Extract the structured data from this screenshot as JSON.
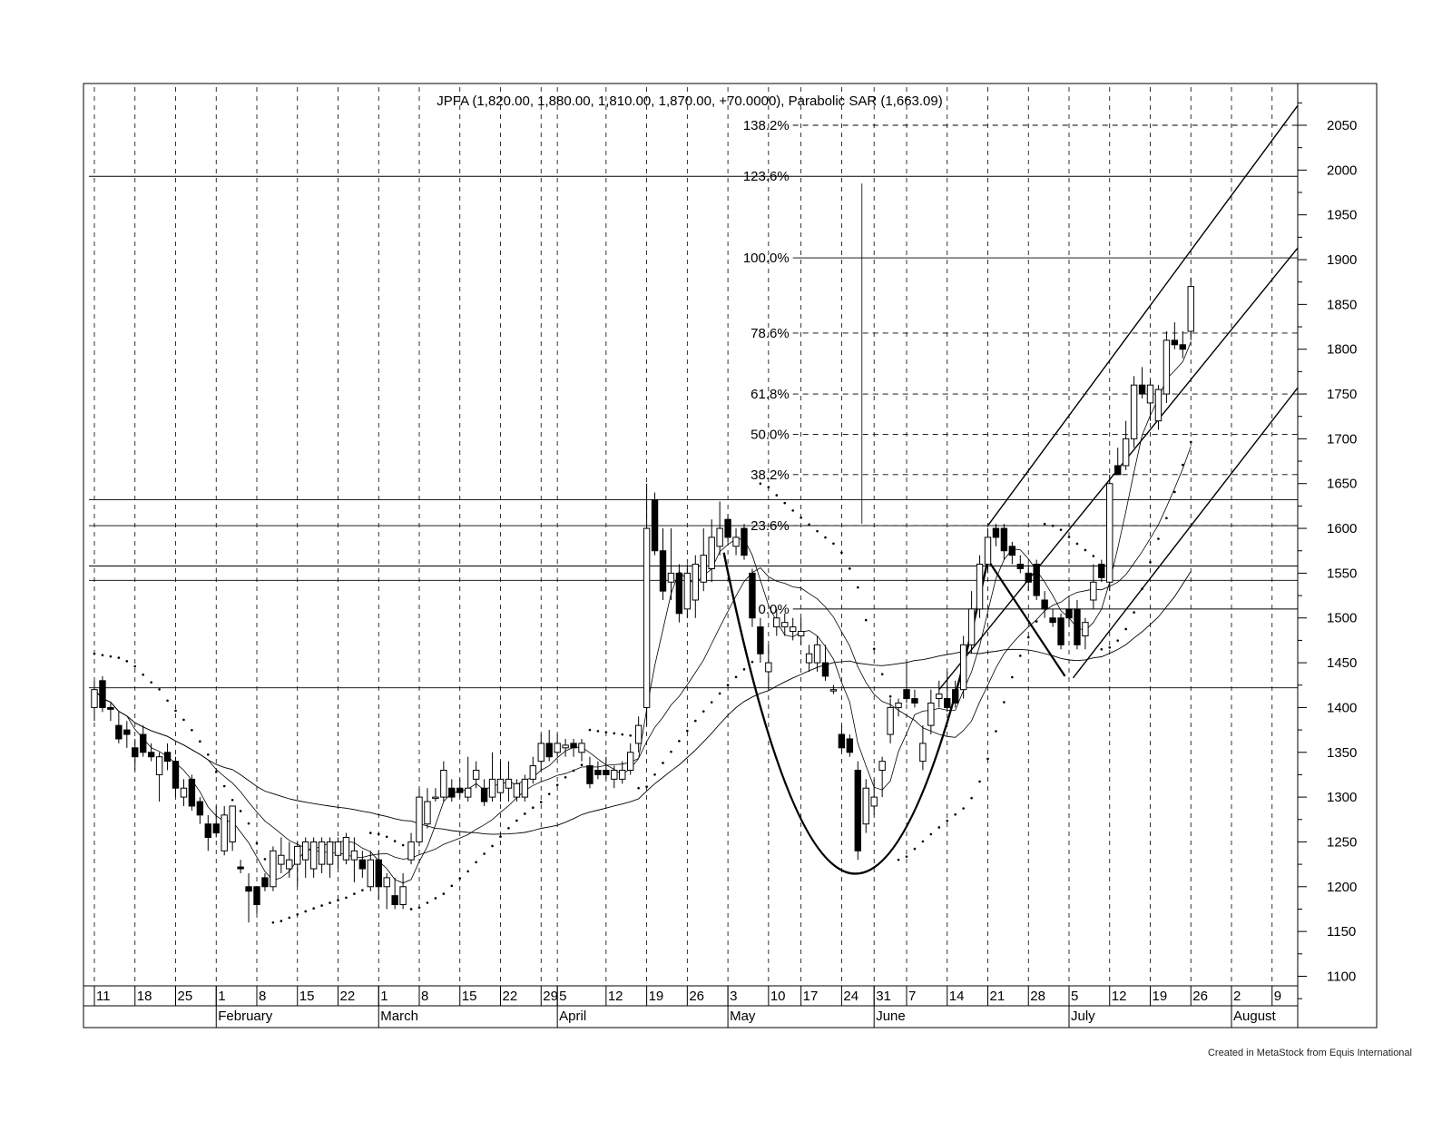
{
  "chart_data": {
    "type": "candlestick",
    "title": "JPFA (1,820.00, 1,880.00, 1,810.00, 1,870.00, +70.0000), Parabolic SAR (1,663.09)",
    "ylim": [
      1070,
      2080
    ],
    "y_ticks": [
      1100,
      1150,
      1200,
      1250,
      1300,
      1350,
      1400,
      1450,
      1500,
      1550,
      1600,
      1650,
      1700,
      1750,
      1800,
      1850,
      1900,
      1950,
      2000,
      2050
    ],
    "x_day_ticks": [
      {
        "i": 0,
        "label": "11"
      },
      {
        "i": 5,
        "label": "18"
      },
      {
        "i": 10,
        "label": "25"
      },
      {
        "i": 15,
        "label": "1"
      },
      {
        "i": 20,
        "label": "8"
      },
      {
        "i": 25,
        "label": "15"
      },
      {
        "i": 30,
        "label": "22"
      },
      {
        "i": 35,
        "label": "1"
      },
      {
        "i": 40,
        "label": "8"
      },
      {
        "i": 45,
        "label": "15"
      },
      {
        "i": 50,
        "label": "22"
      },
      {
        "i": 55,
        "label": "29"
      },
      {
        "i": 57,
        "label": "5"
      },
      {
        "i": 63,
        "label": "12"
      },
      {
        "i": 68,
        "label": "19"
      },
      {
        "i": 73,
        "label": "26"
      },
      {
        "i": 78,
        "label": "3"
      },
      {
        "i": 83,
        "label": "10"
      },
      {
        "i": 87,
        "label": "17"
      },
      {
        "i": 92,
        "label": "24"
      },
      {
        "i": 96,
        "label": "31"
      },
      {
        "i": 100,
        "label": "7"
      },
      {
        "i": 105,
        "label": "14"
      },
      {
        "i": 110,
        "label": "21"
      },
      {
        "i": 115,
        "label": "28"
      },
      {
        "i": 120,
        "label": "5"
      },
      {
        "i": 125,
        "label": "12"
      },
      {
        "i": 130,
        "label": "19"
      },
      {
        "i": 135,
        "label": "26"
      },
      {
        "i": 140,
        "label": "2"
      },
      {
        "i": 145,
        "label": "9"
      }
    ],
    "x_month_labels": [
      {
        "i": 15,
        "label": "February"
      },
      {
        "i": 35,
        "label": "March"
      },
      {
        "i": 57,
        "label": "April"
      },
      {
        "i": 78,
        "label": "May"
      },
      {
        "i": 96,
        "label": "June"
      },
      {
        "i": 120,
        "label": "July"
      },
      {
        "i": 140,
        "label": "August"
      }
    ],
    "fibonacci_levels": [
      {
        "label": "0.0%",
        "value": 1510
      },
      {
        "label": "23.6%",
        "value": 1603
      },
      {
        "label": "38.2%",
        "value": 1660
      },
      {
        "label": "50.0%",
        "value": 1705
      },
      {
        "label": "61.8%",
        "value": 1750
      },
      {
        "label": "78.6%",
        "value": 1818
      },
      {
        "label": "100.0%",
        "value": 1902
      },
      {
        "label": "123.6%",
        "value": 1993
      },
      {
        "label": "138.2%",
        "value": 2050
      }
    ],
    "horizontal_lines": [
      1422,
      1542,
      1558,
      1603,
      1632
    ],
    "candles": [
      {
        "i": 0,
        "o": 1400,
        "h": 1430,
        "l": 1385,
        "c": 1420
      },
      {
        "i": 1,
        "o": 1430,
        "h": 1435,
        "l": 1395,
        "c": 1400
      },
      {
        "i": 2,
        "o": 1400,
        "h": 1405,
        "l": 1385,
        "c": 1398
      },
      {
        "i": 3,
        "o": 1380,
        "h": 1395,
        "l": 1360,
        "c": 1365
      },
      {
        "i": 4,
        "o": 1375,
        "h": 1385,
        "l": 1355,
        "c": 1370
      },
      {
        "i": 5,
        "o": 1355,
        "h": 1365,
        "l": 1330,
        "c": 1345
      },
      {
        "i": 6,
        "o": 1370,
        "h": 1380,
        "l": 1345,
        "c": 1350
      },
      {
        "i": 7,
        "o": 1350,
        "h": 1360,
        "l": 1340,
        "c": 1345
      },
      {
        "i": 8,
        "o": 1325,
        "h": 1350,
        "l": 1295,
        "c": 1345
      },
      {
        "i": 9,
        "o": 1350,
        "h": 1360,
        "l": 1330,
        "c": 1340
      },
      {
        "i": 10,
        "o": 1340,
        "h": 1345,
        "l": 1300,
        "c": 1310
      },
      {
        "i": 11,
        "o": 1300,
        "h": 1320,
        "l": 1290,
        "c": 1310
      },
      {
        "i": 12,
        "o": 1320,
        "h": 1325,
        "l": 1285,
        "c": 1290
      },
      {
        "i": 13,
        "o": 1295,
        "h": 1300,
        "l": 1270,
        "c": 1280
      },
      {
        "i": 14,
        "o": 1270,
        "h": 1280,
        "l": 1240,
        "c": 1255
      },
      {
        "i": 15,
        "o": 1270,
        "h": 1290,
        "l": 1255,
        "c": 1260
      },
      {
        "i": 16,
        "o": 1240,
        "h": 1290,
        "l": 1235,
        "c": 1280
      },
      {
        "i": 17,
        "o": 1250,
        "h": 1290,
        "l": 1240,
        "c": 1290
      },
      {
        "i": 18,
        "o": 1222,
        "h": 1230,
        "l": 1215,
        "c": 1220
      },
      {
        "i": 19,
        "o": 1200,
        "h": 1215,
        "l": 1160,
        "c": 1195
      },
      {
        "i": 20,
        "o": 1200,
        "h": 1200,
        "l": 1170,
        "c": 1180
      },
      {
        "i": 21,
        "o": 1210,
        "h": 1215,
        "l": 1195,
        "c": 1200
      },
      {
        "i": 22,
        "o": 1200,
        "h": 1245,
        "l": 1195,
        "c": 1240
      },
      {
        "i": 23,
        "o": 1225,
        "h": 1255,
        "l": 1215,
        "c": 1235
      },
      {
        "i": 24,
        "o": 1220,
        "h": 1250,
        "l": 1210,
        "c": 1230
      },
      {
        "i": 25,
        "o": 1225,
        "h": 1250,
        "l": 1200,
        "c": 1245
      },
      {
        "i": 26,
        "o": 1230,
        "h": 1255,
        "l": 1210,
        "c": 1250
      },
      {
        "i": 27,
        "o": 1220,
        "h": 1255,
        "l": 1210,
        "c": 1250
      },
      {
        "i": 28,
        "o": 1225,
        "h": 1255,
        "l": 1215,
        "c": 1250
      },
      {
        "i": 29,
        "o": 1225,
        "h": 1255,
        "l": 1210,
        "c": 1250
      },
      {
        "i": 30,
        "o": 1235,
        "h": 1255,
        "l": 1220,
        "c": 1250
      },
      {
        "i": 31,
        "o": 1230,
        "h": 1260,
        "l": 1225,
        "c": 1255
      },
      {
        "i": 32,
        "o": 1230,
        "h": 1255,
        "l": 1205,
        "c": 1240
      },
      {
        "i": 33,
        "o": 1230,
        "h": 1240,
        "l": 1210,
        "c": 1220
      },
      {
        "i": 34,
        "o": 1200,
        "h": 1240,
        "l": 1195,
        "c": 1230
      },
      {
        "i": 35,
        "o": 1230,
        "h": 1240,
        "l": 1185,
        "c": 1200
      },
      {
        "i": 36,
        "o": 1200,
        "h": 1215,
        "l": 1175,
        "c": 1210
      },
      {
        "i": 37,
        "o": 1190,
        "h": 1210,
        "l": 1175,
        "c": 1180
      },
      {
        "i": 38,
        "o": 1180,
        "h": 1215,
        "l": 1175,
        "c": 1200
      },
      {
        "i": 39,
        "o": 1230,
        "h": 1260,
        "l": 1225,
        "c": 1250
      },
      {
        "i": 40,
        "o": 1250,
        "h": 1310,
        "l": 1245,
        "c": 1300
      },
      {
        "i": 41,
        "o": 1270,
        "h": 1310,
        "l": 1265,
        "c": 1295
      },
      {
        "i": 42,
        "o": 1300,
        "h": 1310,
        "l": 1295,
        "c": 1300
      },
      {
        "i": 43,
        "o": 1300,
        "h": 1340,
        "l": 1295,
        "c": 1330
      },
      {
        "i": 44,
        "o": 1310,
        "h": 1320,
        "l": 1295,
        "c": 1300
      },
      {
        "i": 45,
        "o": 1310,
        "h": 1320,
        "l": 1300,
        "c": 1305
      },
      {
        "i": 46,
        "o": 1300,
        "h": 1345,
        "l": 1295,
        "c": 1310
      },
      {
        "i": 47,
        "o": 1320,
        "h": 1340,
        "l": 1310,
        "c": 1330
      },
      {
        "i": 48,
        "o": 1310,
        "h": 1320,
        "l": 1290,
        "c": 1295
      },
      {
        "i": 49,
        "o": 1300,
        "h": 1350,
        "l": 1295,
        "c": 1320
      },
      {
        "i": 50,
        "o": 1305,
        "h": 1340,
        "l": 1295,
        "c": 1320
      },
      {
        "i": 51,
        "o": 1310,
        "h": 1340,
        "l": 1295,
        "c": 1320
      },
      {
        "i": 52,
        "o": 1300,
        "h": 1320,
        "l": 1295,
        "c": 1315
      },
      {
        "i": 53,
        "o": 1300,
        "h": 1325,
        "l": 1295,
        "c": 1320
      },
      {
        "i": 54,
        "o": 1320,
        "h": 1345,
        "l": 1315,
        "c": 1335
      },
      {
        "i": 55,
        "o": 1340,
        "h": 1370,
        "l": 1330,
        "c": 1360
      },
      {
        "i": 56,
        "o": 1360,
        "h": 1375,
        "l": 1340,
        "c": 1345
      },
      {
        "i": 57,
        "o": 1350,
        "h": 1370,
        "l": 1345,
        "c": 1360
      },
      {
        "i": 58,
        "o": 1355,
        "h": 1365,
        "l": 1345,
        "c": 1358
      },
      {
        "i": 59,
        "o": 1360,
        "h": 1365,
        "l": 1345,
        "c": 1355
      },
      {
        "i": 60,
        "o": 1350,
        "h": 1365,
        "l": 1340,
        "c": 1360
      },
      {
        "i": 61,
        "o": 1335,
        "h": 1345,
        "l": 1310,
        "c": 1315
      },
      {
        "i": 62,
        "o": 1330,
        "h": 1340,
        "l": 1320,
        "c": 1325
      },
      {
        "i": 63,
        "o": 1330,
        "h": 1345,
        "l": 1320,
        "c": 1325
      },
      {
        "i": 64,
        "o": 1320,
        "h": 1335,
        "l": 1310,
        "c": 1330
      },
      {
        "i": 65,
        "o": 1320,
        "h": 1340,
        "l": 1315,
        "c": 1330
      },
      {
        "i": 66,
        "o": 1330,
        "h": 1360,
        "l": 1325,
        "c": 1350
      },
      {
        "i": 67,
        "o": 1360,
        "h": 1390,
        "l": 1350,
        "c": 1380
      },
      {
        "i": 68,
        "o": 1400,
        "h": 1650,
        "l": 1380,
        "c": 1600
      },
      {
        "i": 69,
        "o": 1632,
        "h": 1640,
        "l": 1570,
        "c": 1575
      },
      {
        "i": 70,
        "o": 1575,
        "h": 1600,
        "l": 1520,
        "c": 1530
      },
      {
        "i": 71,
        "o": 1540,
        "h": 1600,
        "l": 1520,
        "c": 1550
      },
      {
        "i": 72,
        "o": 1550,
        "h": 1560,
        "l": 1495,
        "c": 1505
      },
      {
        "i": 73,
        "o": 1510,
        "h": 1560,
        "l": 1500,
        "c": 1550
      },
      {
        "i": 74,
        "o": 1520,
        "h": 1570,
        "l": 1500,
        "c": 1560
      },
      {
        "i": 75,
        "o": 1540,
        "h": 1600,
        "l": 1530,
        "c": 1570
      },
      {
        "i": 76,
        "o": 1555,
        "h": 1610,
        "l": 1540,
        "c": 1590
      },
      {
        "i": 77,
        "o": 1580,
        "h": 1630,
        "l": 1570,
        "c": 1600
      },
      {
        "i": 78,
        "o": 1610,
        "h": 1615,
        "l": 1585,
        "c": 1590
      },
      {
        "i": 79,
        "o": 1580,
        "h": 1600,
        "l": 1570,
        "c": 1590
      },
      {
        "i": 80,
        "o": 1600,
        "h": 1605,
        "l": 1565,
        "c": 1570
      },
      {
        "i": 81,
        "o": 1550,
        "h": 1555,
        "l": 1490,
        "c": 1500
      },
      {
        "i": 82,
        "o": 1490,
        "h": 1500,
        "l": 1450,
        "c": 1460
      },
      {
        "i": 83,
        "o": 1440,
        "h": 1470,
        "l": 1420,
        "c": 1450
      },
      {
        "i": 84,
        "o": 1490,
        "h": 1510,
        "l": 1480,
        "c": 1500
      },
      {
        "i": 85,
        "o": 1490,
        "h": 1505,
        "l": 1480,
        "c": 1495
      },
      {
        "i": 86,
        "o": 1485,
        "h": 1500,
        "l": 1475,
        "c": 1490
      },
      {
        "i": 87,
        "o": 1480,
        "h": 1500,
        "l": 1470,
        "c": 1485
      },
      {
        "i": 88,
        "o": 1450,
        "h": 1470,
        "l": 1440,
        "c": 1460
      },
      {
        "i": 89,
        "o": 1450,
        "h": 1480,
        "l": 1440,
        "c": 1470
      },
      {
        "i": 90,
        "o": 1450,
        "h": 1470,
        "l": 1430,
        "c": 1435
      },
      {
        "i": 91,
        "o": 1420,
        "h": 1425,
        "l": 1415,
        "c": 1420
      },
      {
        "i": 92,
        "o": 1370,
        "h": 1380,
        "l": 1350,
        "c": 1355
      },
      {
        "i": 93,
        "o": 1365,
        "h": 1370,
        "l": 1345,
        "c": 1350
      },
      {
        "i": 94,
        "o": 1330,
        "h": 1340,
        "l": 1230,
        "c": 1240
      },
      {
        "i": 95,
        "o": 1270,
        "h": 1320,
        "l": 1260,
        "c": 1310
      },
      {
        "i": 96,
        "o": 1290,
        "h": 1320,
        "l": 1280,
        "c": 1300
      },
      {
        "i": 97,
        "o": 1330,
        "h": 1345,
        "l": 1300,
        "c": 1340
      },
      {
        "i": 98,
        "o": 1370,
        "h": 1410,
        "l": 1360,
        "c": 1400
      },
      {
        "i": 99,
        "o": 1400,
        "h": 1410,
        "l": 1390,
        "c": 1405
      },
      {
        "i": 100,
        "o": 1420,
        "h": 1450,
        "l": 1405,
        "c": 1410
      },
      {
        "i": 101,
        "o": 1410,
        "h": 1420,
        "l": 1400,
        "c": 1405
      },
      {
        "i": 102,
        "o": 1340,
        "h": 1380,
        "l": 1330,
        "c": 1360
      },
      {
        "i": 103,
        "o": 1380,
        "h": 1420,
        "l": 1370,
        "c": 1405
      },
      {
        "i": 104,
        "o": 1410,
        "h": 1430,
        "l": 1400,
        "c": 1415
      },
      {
        "i": 105,
        "o": 1410,
        "h": 1440,
        "l": 1395,
        "c": 1400
      },
      {
        "i": 106,
        "o": 1420,
        "h": 1430,
        "l": 1400,
        "c": 1405
      },
      {
        "i": 107,
        "o": 1420,
        "h": 1480,
        "l": 1410,
        "c": 1470
      },
      {
        "i": 108,
        "o": 1470,
        "h": 1530,
        "l": 1460,
        "c": 1510
      },
      {
        "i": 109,
        "o": 1510,
        "h": 1570,
        "l": 1500,
        "c": 1560
      },
      {
        "i": 110,
        "o": 1560,
        "h": 1600,
        "l": 1550,
        "c": 1590
      },
      {
        "i": 111,
        "o": 1600,
        "h": 1605,
        "l": 1580,
        "c": 1590
      },
      {
        "i": 112,
        "o": 1600,
        "h": 1605,
        "l": 1565,
        "c": 1575
      },
      {
        "i": 113,
        "o": 1580,
        "h": 1585,
        "l": 1560,
        "c": 1570
      },
      {
        "i": 114,
        "o": 1560,
        "h": 1570,
        "l": 1550,
        "c": 1555
      },
      {
        "i": 115,
        "o": 1550,
        "h": 1560,
        "l": 1530,
        "c": 1540
      },
      {
        "i": 116,
        "o": 1560,
        "h": 1565,
        "l": 1520,
        "c": 1525
      },
      {
        "i": 117,
        "o": 1520,
        "h": 1530,
        "l": 1500,
        "c": 1510
      },
      {
        "i": 118,
        "o": 1500,
        "h": 1510,
        "l": 1490,
        "c": 1495
      },
      {
        "i": 119,
        "o": 1500,
        "h": 1505,
        "l": 1465,
        "c": 1470
      },
      {
        "i": 120,
        "o": 1510,
        "h": 1520,
        "l": 1490,
        "c": 1500
      },
      {
        "i": 121,
        "o": 1510,
        "h": 1520,
        "l": 1465,
        "c": 1470
      },
      {
        "i": 122,
        "o": 1480,
        "h": 1500,
        "l": 1465,
        "c": 1495
      },
      {
        "i": 123,
        "o": 1520,
        "h": 1560,
        "l": 1510,
        "c": 1540
      },
      {
        "i": 124,
        "o": 1560,
        "h": 1565,
        "l": 1540,
        "c": 1545
      },
      {
        "i": 125,
        "o": 1540,
        "h": 1660,
        "l": 1530,
        "c": 1650
      },
      {
        "i": 126,
        "o": 1670,
        "h": 1690,
        "l": 1660,
        "c": 1660
      },
      {
        "i": 127,
        "o": 1670,
        "h": 1720,
        "l": 1665,
        "c": 1700
      },
      {
        "i": 128,
        "o": 1700,
        "h": 1770,
        "l": 1690,
        "c": 1760
      },
      {
        "i": 129,
        "o": 1760,
        "h": 1780,
        "l": 1745,
        "c": 1750
      },
      {
        "i": 130,
        "o": 1740,
        "h": 1765,
        "l": 1720,
        "c": 1760
      },
      {
        "i": 131,
        "o": 1720,
        "h": 1760,
        "l": 1710,
        "c": 1755
      },
      {
        "i": 132,
        "o": 1750,
        "h": 1820,
        "l": 1740,
        "c": 1810
      },
      {
        "i": 133,
        "o": 1810,
        "h": 1830,
        "l": 1800,
        "c": 1805
      },
      {
        "i": 134,
        "o": 1805,
        "h": 1820,
        "l": 1790,
        "c": 1800
      },
      {
        "i": 135,
        "o": 1820,
        "h": 1880,
        "l": 1810,
        "c": 1870
      }
    ]
  },
  "footer": {
    "credit": "Created in MetaStock from Equis International"
  }
}
